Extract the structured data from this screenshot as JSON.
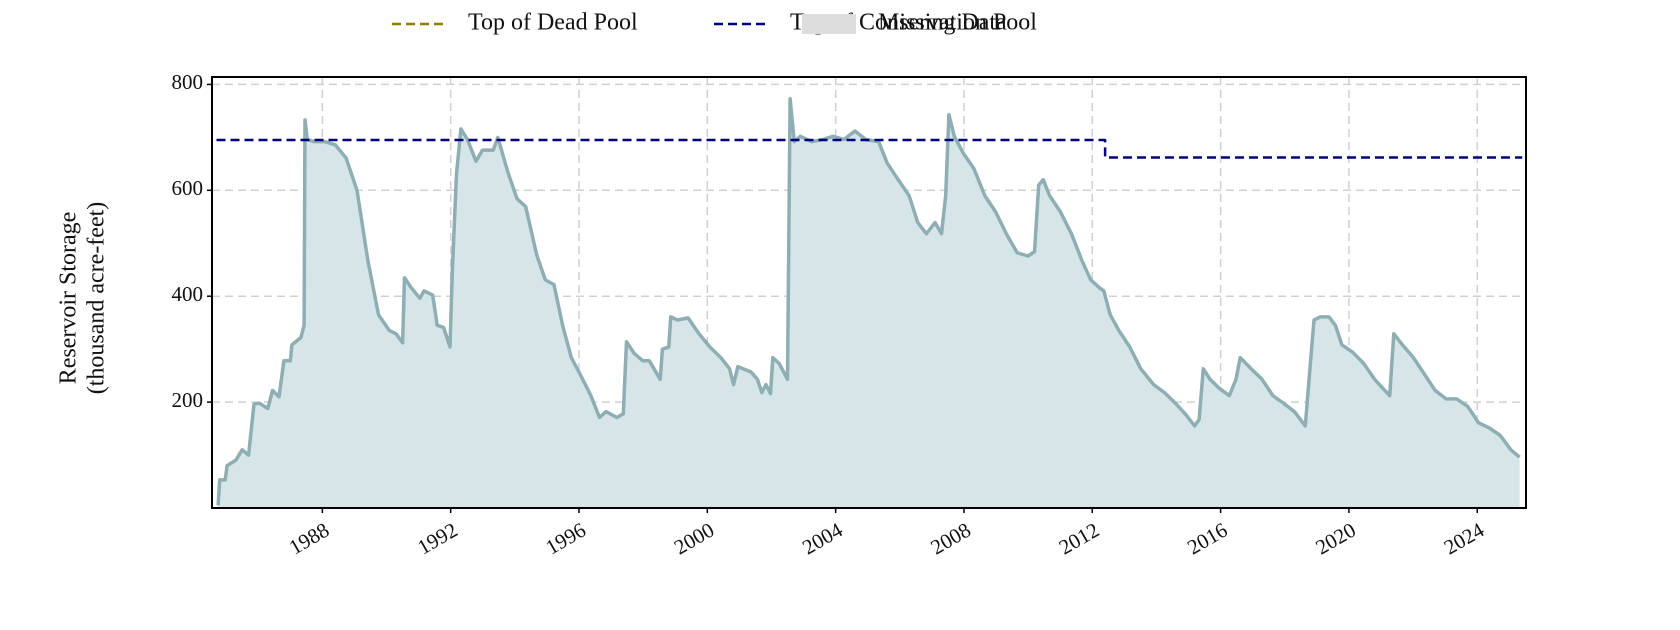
{
  "chart_data": {
    "type": "line",
    "ylabel": [
      "Reservoir Storage",
      "(thousand acre-feet)"
    ],
    "xlim": [
      1984.56,
      2025.52
    ],
    "ylim": [
      0,
      814
    ],
    "xticks": [
      1988,
      1992,
      1996,
      2000,
      2004,
      2008,
      2012,
      2016,
      2020,
      2024
    ],
    "yticks": [
      200,
      400,
      600,
      800
    ],
    "grid": true,
    "legend_position": "top",
    "legend": [
      {
        "name": "Top of Dead Pool",
        "color": "#8b8000",
        "style": "dashed"
      },
      {
        "name": "Top of Conservation Pool",
        "color": "#000080",
        "style": "dashed"
      },
      {
        "name": "Missing Data",
        "color": "#dddddd",
        "style": "patch"
      }
    ],
    "series": [
      {
        "color": "#8eaeb4",
        "fill": "#d6e6e8",
        "x": [
          1984.75,
          1984.8,
          1984.97,
          1985.03,
          1985.3,
          1985.5,
          1985.7,
          1985.77,
          1985.87,
          1986.04,
          1986.3,
          1986.45,
          1986.65,
          1986.8,
          1987.0,
          1987.05,
          1987.33,
          1987.43,
          1987.46,
          1987.53,
          1987.73,
          1988.07,
          1988.4,
          1988.74,
          1989.08,
          1989.42,
          1989.75,
          1990.09,
          1990.3,
          1990.5,
          1990.56,
          1990.77,
          1991.04,
          1991.17,
          1991.44,
          1991.58,
          1991.78,
          1991.98,
          1992.05,
          1992.18,
          1992.32,
          1992.52,
          1992.79,
          1992.99,
          1993.33,
          1993.47,
          1993.8,
          1994.07,
          1994.34,
          1994.68,
          1994.95,
          1995.22,
          1995.49,
          1995.76,
          1996.03,
          1996.37,
          1996.64,
          1996.84,
          1997.18,
          1997.38,
          1997.48,
          1997.72,
          1997.99,
          1998.19,
          1998.53,
          1998.6,
          1998.8,
          1998.86,
          1999.07,
          1999.4,
          1999.74,
          2000.08,
          2000.42,
          2000.69,
          2000.82,
          2000.95,
          2001.36,
          2001.56,
          2001.7,
          2001.83,
          2001.97,
          2002.04,
          2002.24,
          2002.5,
          2002.58,
          2002.71,
          2002.9,
          2003.25,
          2003.6,
          2003.92,
          2004.26,
          2004.6,
          2004.94,
          2005.34,
          2005.61,
          2005.95,
          2006.29,
          2006.56,
          2006.83,
          2007.1,
          2007.3,
          2007.43,
          2007.53,
          2007.7,
          2007.97,
          2008.31,
          2008.65,
          2008.99,
          2009.32,
          2009.66,
          2010.0,
          2010.2,
          2010.33,
          2010.47,
          2010.67,
          2011.01,
          2011.35,
          2011.68,
          2011.95,
          2012.22,
          2012.36,
          2012.56,
          2012.83,
          2013.17,
          2013.51,
          2013.91,
          2014.25,
          2014.59,
          2014.92,
          2015.19,
          2015.33,
          2015.46,
          2015.67,
          2015.94,
          2016.27,
          2016.48,
          2016.61,
          2016.95,
          2017.29,
          2017.63,
          2017.96,
          2018.3,
          2018.64,
          2018.77,
          2018.91,
          2019.11,
          2019.38,
          2019.58,
          2019.78,
          2020.12,
          2020.46,
          2020.8,
          2021.27,
          2021.4,
          2021.67,
          2022.01,
          2022.35,
          2022.69,
          2023.03,
          2023.36,
          2023.7,
          2024.04,
          2024.38,
          2024.72,
          2025.05,
          2025.32
        ],
        "values": [
          5,
          53,
          53,
          80,
          90,
          110,
          100,
          140,
          196,
          198,
          188,
          222,
          210,
          278,
          278,
          308,
          322,
          345,
          733,
          696,
          692,
          692,
          686,
          661,
          600,
          467,
          365,
          335,
          329,
          312,
          435,
          416,
          396,
          410,
          402,
          345,
          341,
          304,
          447,
          631,
          716,
          696,
          655,
          676,
          676,
          700,
          631,
          584,
          569,
          478,
          431,
          422,
          345,
          284,
          253,
          212,
          171,
          182,
          171,
          178,
          314,
          292,
          278,
          278,
          243,
          300,
          304,
          361,
          355,
          359,
          329,
          304,
          284,
          263,
          233,
          267,
          257,
          243,
          218,
          233,
          216,
          284,
          273,
          243,
          773,
          692,
          702,
          692,
          696,
          702,
          696,
          712,
          696,
          692,
          651,
          620,
          590,
          539,
          518,
          539,
          518,
          590,
          743,
          702,
          671,
          641,
          590,
          559,
          518,
          482,
          476,
          484,
          610,
          620,
          590,
          559,
          518,
          467,
          431,
          416,
          410,
          365,
          335,
          304,
          263,
          233,
          218,
          198,
          176,
          155,
          167,
          263,
          243,
          227,
          212,
          243,
          284,
          263,
          243,
          212,
          198,
          182,
          155,
          253,
          355,
          361,
          361,
          345,
          308,
          294,
          273,
          243,
          212,
          329,
          308,
          284,
          253,
          222,
          206,
          206,
          192,
          161,
          151,
          137,
          110,
          96
        ]
      },
      {
        "color": "#000080",
        "dashed": true,
        "x": [
          1984.7,
          2012.4,
          2012.4,
          2025.4
        ],
        "values": [
          695,
          695,
          662,
          662
        ]
      }
    ]
  }
}
